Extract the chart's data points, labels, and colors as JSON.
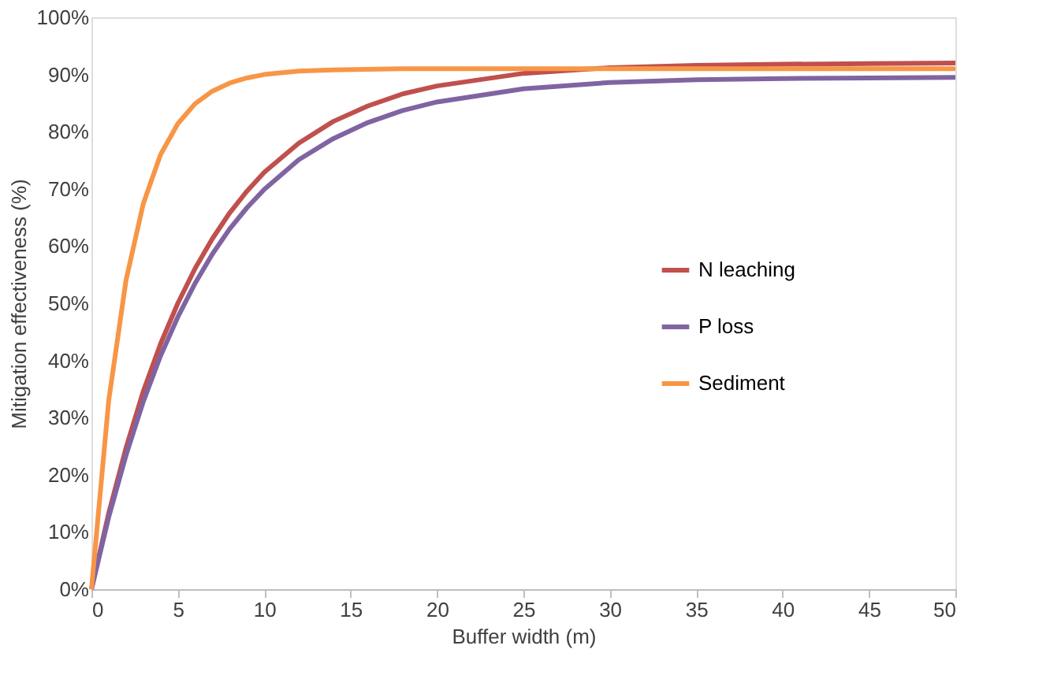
{
  "chart_data": {
    "type": "line",
    "xlabel": "Buffer width (m)",
    "ylabel": "Mitigation effectiveness (%)",
    "x": [
      0,
      1,
      2,
      3,
      4,
      5,
      6,
      7,
      8,
      9,
      10,
      12,
      14,
      16,
      18,
      20,
      25,
      30,
      35,
      40,
      45,
      50
    ],
    "series": [
      {
        "name": "N leaching",
        "color": "#c0504d",
        "values": [
          0,
          13.3,
          24.7,
          34.6,
          42.9,
          50.0,
          56.1,
          61.3,
          65.8,
          69.6,
          72.9,
          78.0,
          81.8,
          84.5,
          86.6,
          88.0,
          90.2,
          91.2,
          91.6,
          91.8,
          91.9,
          92.0
        ]
      },
      {
        "name": "P loss",
        "color": "#8064a2",
        "values": [
          0,
          12.6,
          23.4,
          32.8,
          40.8,
          47.6,
          53.5,
          58.6,
          63.0,
          66.7,
          69.9,
          75.1,
          78.8,
          81.6,
          83.7,
          85.2,
          87.5,
          88.6,
          89.1,
          89.3,
          89.4,
          89.5
        ]
      },
      {
        "name": "Sediment",
        "color": "#f79646",
        "values": [
          0,
          33.0,
          54.0,
          67.4,
          76.0,
          81.4,
          84.9,
          87.1,
          88.5,
          89.4,
          90.0,
          90.6,
          90.8,
          90.9,
          91.0,
          91.0,
          91.0,
          91.0,
          91.0,
          91.0,
          91.0,
          91.0
        ]
      }
    ],
    "xlim": [
      0,
      50
    ],
    "xticks": [
      0,
      5,
      10,
      15,
      20,
      25,
      30,
      35,
      40,
      45,
      50
    ],
    "ylim": [
      0,
      100
    ],
    "yticks": [
      {
        "value": 0,
        "label": "0%"
      },
      {
        "value": 10,
        "label": "10%"
      },
      {
        "value": 20,
        "label": "20%"
      },
      {
        "value": 30,
        "label": "30%"
      },
      {
        "value": 40,
        "label": "40%"
      },
      {
        "value": 50,
        "label": "50%"
      },
      {
        "value": 60,
        "label": "60%"
      },
      {
        "value": 70,
        "label": "70%"
      },
      {
        "value": 80,
        "label": "80%"
      },
      {
        "value": 90,
        "label": "90%"
      },
      {
        "value": 100,
        "label": "100%"
      }
    ],
    "grid": false,
    "legend": "right",
    "marker": "none",
    "line_style": "solid"
  }
}
